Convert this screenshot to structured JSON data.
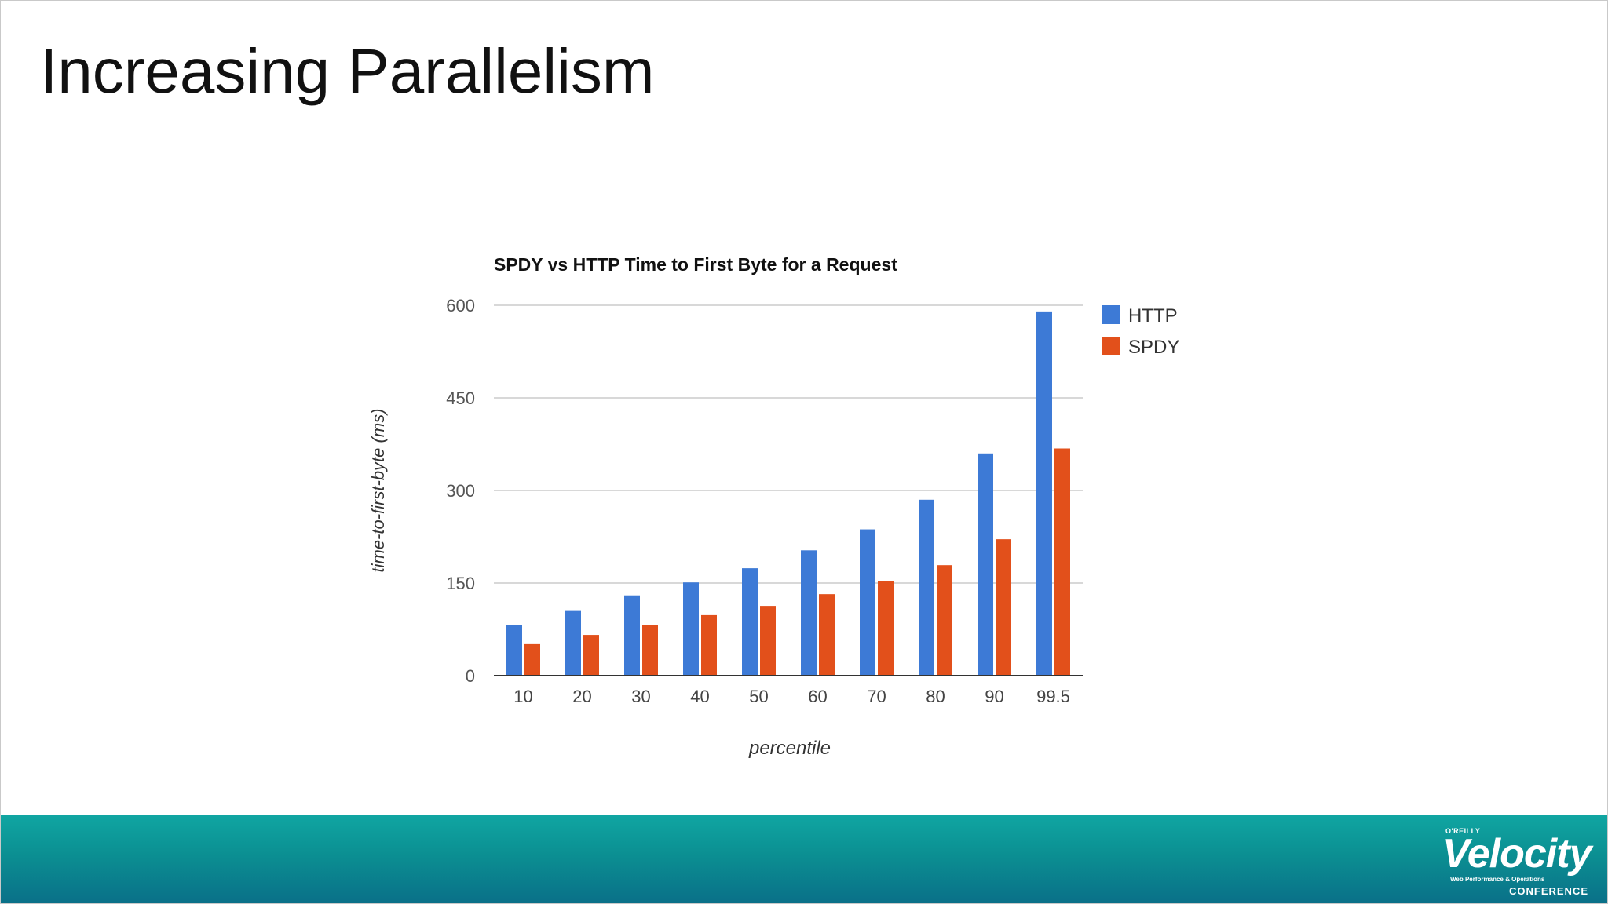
{
  "slide": {
    "title": "Increasing Parallelism"
  },
  "chart_data": {
    "type": "bar",
    "title": "SPDY vs HTTP Time to First Byte for a Request",
    "xlabel": "percentile",
    "ylabel": "time-to-first-byte (ms)",
    "categories": [
      "10",
      "20",
      "30",
      "40",
      "50",
      "60",
      "70",
      "80",
      "90",
      "99.5"
    ],
    "series": [
      {
        "name": "HTTP",
        "color": "#3d7ad6",
        "values": [
          82,
          106,
          130,
          151,
          174,
          203,
          237,
          285,
          360,
          590
        ]
      },
      {
        "name": "SPDY",
        "color": "#e2501b",
        "values": [
          51,
          66,
          82,
          98,
          113,
          132,
          153,
          179,
          221,
          368
        ]
      }
    ],
    "ylim": [
      0,
      600
    ],
    "yticks": [
      0,
      150,
      300,
      450,
      600
    ],
    "grid": true,
    "legend_position": "right"
  },
  "footer": {
    "logo_publisher": "O'REILLY",
    "logo_name": "Velocity",
    "logo_tagline": "Web Performance & Operations",
    "logo_conference": "CONFERENCE",
    "colors": {
      "band": "#0b8f92"
    }
  }
}
